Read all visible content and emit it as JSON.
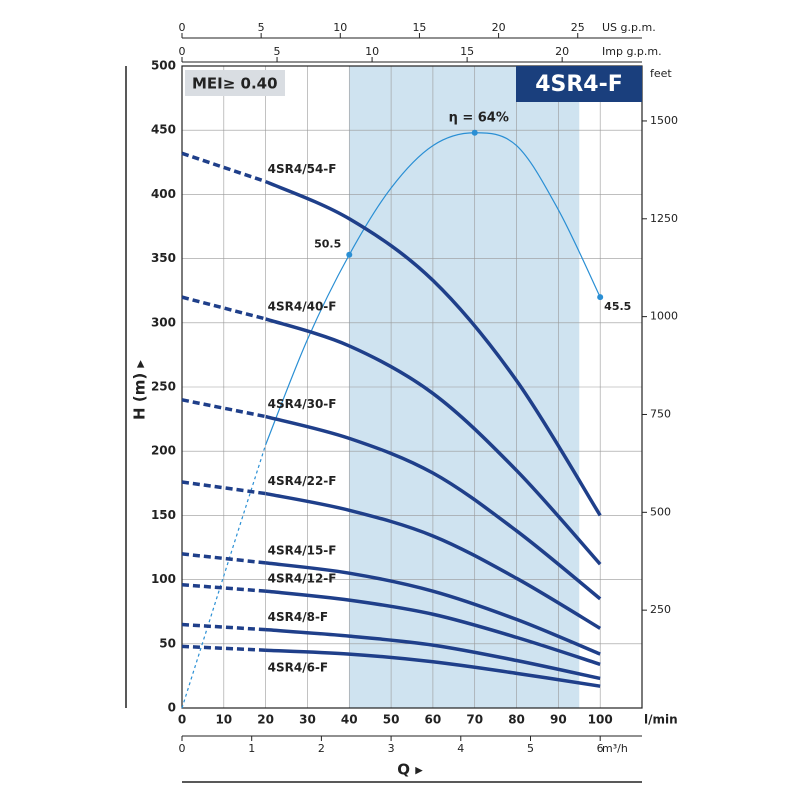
{
  "chart_data": {
    "type": "line",
    "title": "4SR4-F",
    "badge": "MEI≥ 0.40",
    "ylabel": "H (m) ▸",
    "xlabel": "Q ▸",
    "xunit": "l/min",
    "x2unit": "US g.p.m.",
    "x3unit": "Imp g.p.m.",
    "x4unit": "m³/h",
    "y2unit": "feet",
    "x": [
      0,
      20,
      40,
      60,
      80,
      100
    ],
    "dashed_until": 20,
    "series": [
      {
        "name": "4SR4/54-F",
        "color": "#1f3f8a",
        "values": [
          432,
          410,
          381,
          333,
          255,
          150
        ]
      },
      {
        "name": "4SR4/40-F",
        "color": "#1f3f8a",
        "values": [
          320,
          303,
          282,
          245,
          185,
          112
        ]
      },
      {
        "name": "4SR4/30-F",
        "color": "#1f3f8a",
        "values": [
          240,
          227,
          210,
          183,
          138,
          85
        ]
      },
      {
        "name": "4SR4/22-F",
        "color": "#1f3f8a",
        "values": [
          176,
          167,
          154,
          134,
          101,
          62
        ]
      },
      {
        "name": "4SR4/15-F",
        "color": "#1f3f8a",
        "values": [
          120,
          113,
          105,
          91,
          69,
          42
        ]
      },
      {
        "name": "4SR4/12-F",
        "color": "#1f3f8a",
        "values": [
          96,
          91,
          84,
          73,
          55,
          34
        ]
      },
      {
        "name": "4SR4/8-F",
        "color": "#1f3f8a",
        "values": [
          65,
          61,
          56,
          49,
          37,
          23
        ]
      },
      {
        "name": "4SR4/6-F",
        "color": "#1f3f8a",
        "values": [
          48,
          45,
          42,
          36,
          27,
          17
        ]
      }
    ],
    "efficiency": {
      "color": "#2a8fd4",
      "x": [
        0,
        10,
        20,
        30,
        40,
        50,
        60,
        70,
        80,
        90,
        100
      ],
      "values": [
        0,
        103,
        205,
        287,
        353,
        405,
        438,
        448,
        438,
        388,
        320
      ],
      "points": [
        {
          "x": 40,
          "label": "50.5"
        },
        {
          "x": 70,
          "label": "η = 64%"
        },
        {
          "x": 100,
          "label": "45.5"
        }
      ]
    },
    "band": [
      40,
      95
    ],
    "band_color": "#cfe3f0",
    "xlim": [
      0,
      110
    ],
    "xticks": [
      0,
      10,
      20,
      30,
      40,
      50,
      60,
      70,
      80,
      90,
      100
    ],
    "ylim": [
      0,
      500
    ],
    "yticks": [
      0,
      50,
      100,
      150,
      200,
      250,
      300,
      350,
      400,
      450,
      500
    ],
    "x2lim": [
      0,
      29.06
    ],
    "x2ticks": [
      0,
      5,
      10,
      15,
      20,
      25
    ],
    "x3lim": [
      0,
      24.2
    ],
    "x3ticks": [
      0,
      5,
      10,
      15,
      20
    ],
    "x4lim": [
      0,
      6.6
    ],
    "x4ticks": [
      0,
      1,
      2,
      3,
      4,
      5,
      6
    ],
    "y2lim": [
      0,
      1640.4
    ],
    "y2ticks": [
      250,
      500,
      750,
      1000,
      1250,
      1500
    ],
    "grid": true
  }
}
